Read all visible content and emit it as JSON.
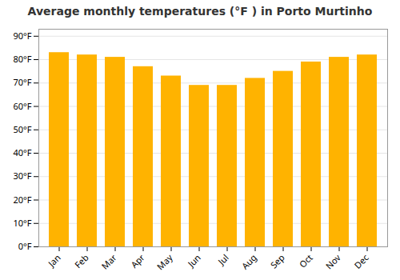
{
  "chart_data": {
    "type": "bar",
    "title": "Average monthly temperatures (°F ) in Porto Murtinho",
    "categories": [
      "Jan",
      "Feb",
      "Mar",
      "Apr",
      "May",
      "Jun",
      "Jul",
      "Aug",
      "Sep",
      "Oct",
      "Nov",
      "Dec"
    ],
    "values": [
      83,
      82,
      81,
      77,
      73,
      69,
      69,
      72,
      75,
      79,
      81,
      82
    ],
    "color": "#FFB300",
    "ylim": [
      0,
      93
    ],
    "yticks": [
      {
        "value": 0,
        "label": "0°F"
      },
      {
        "value": 10,
        "label": "10°F"
      },
      {
        "value": 20,
        "label": "20°F"
      },
      {
        "value": 30,
        "label": "30°F"
      },
      {
        "value": 40,
        "label": "40°F"
      },
      {
        "value": 50,
        "label": "50°F"
      },
      {
        "value": 60,
        "label": "60°F"
      },
      {
        "value": 70,
        "label": "70°F"
      },
      {
        "value": 80,
        "label": "80°F"
      },
      {
        "value": 90,
        "label": "90°F"
      }
    ],
    "grid": true
  }
}
